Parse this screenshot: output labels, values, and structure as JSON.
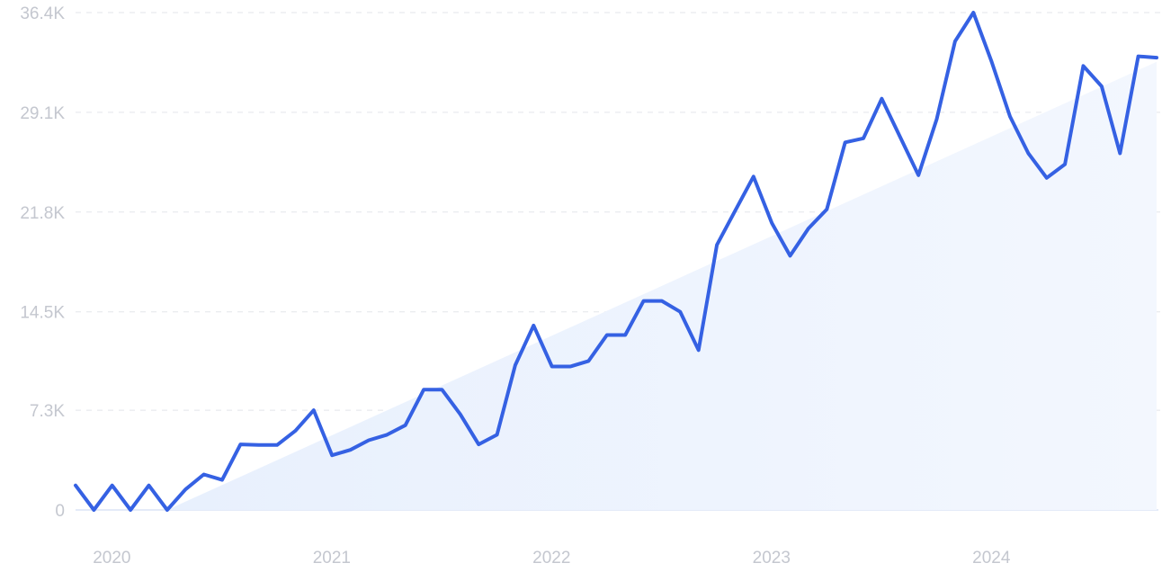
{
  "chart_data": {
    "type": "line",
    "title": "",
    "xlabel": "",
    "ylabel": "",
    "x_tick_labels": [
      "2020",
      "2021",
      "2022",
      "2023",
      "2024"
    ],
    "y_tick_labels": [
      "0",
      "7.3K",
      "14.5K",
      "21.8K",
      "29.1K",
      "36.4K"
    ],
    "y_ticks": [
      0,
      7300,
      14500,
      21800,
      29100,
      36400
    ],
    "ylim": [
      0,
      36400
    ],
    "xlim": [
      "2019-12",
      "2024-11"
    ],
    "grid": true,
    "line_color": "#3561e3",
    "trend_fill_color": "#e6effd",
    "trend": {
      "start": [
        "2020-05",
        0
      ],
      "end": [
        "2024-11",
        32800
      ]
    },
    "series": [
      {
        "x": [
          "2019-12",
          "2020-01",
          "2020-02",
          "2020-03",
          "2020-04",
          "2020-05",
          "2020-06",
          "2020-07",
          "2020-08",
          "2020-09",
          "2020-10",
          "2020-11",
          "2020-12",
          "2021-01",
          "2021-02",
          "2021-03",
          "2021-04",
          "2021-05",
          "2021-06",
          "2021-07",
          "2021-08",
          "2021-09",
          "2021-10",
          "2021-11",
          "2021-12",
          "2022-01",
          "2022-02",
          "2022-03",
          "2022-04",
          "2022-05",
          "2022-06",
          "2022-07",
          "2022-08",
          "2022-09",
          "2022-10",
          "2022-11",
          "2022-12",
          "2023-01",
          "2023-02",
          "2023-03",
          "2023-04",
          "2023-05",
          "2023-06",
          "2023-07",
          "2023-08",
          "2023-09",
          "2023-10",
          "2023-11",
          "2023-12",
          "2024-01",
          "2024-02",
          "2024-03",
          "2024-04",
          "2024-05",
          "2024-06",
          "2024-07",
          "2024-08",
          "2024-09",
          "2024-10",
          "2024-11"
        ],
        "values": [
          1800,
          0,
          1800,
          0,
          1800,
          0,
          1500,
          2600,
          2200,
          4800,
          4750,
          4750,
          5800,
          7300,
          4000,
          4400,
          5100,
          5500,
          6200,
          8800,
          8800,
          7000,
          4800,
          5500,
          10600,
          13500,
          10500,
          10500,
          10900,
          12800,
          12800,
          15300,
          15300,
          14500,
          11700,
          19400,
          21900,
          24400,
          21000,
          18600,
          20600,
          22000,
          26900,
          27200,
          30100,
          27300,
          24500,
          28600,
          34300,
          36400,
          32800,
          28800,
          26100,
          24300,
          25300,
          32500,
          31000,
          26100,
          33200,
          33100
        ]
      }
    ]
  }
}
